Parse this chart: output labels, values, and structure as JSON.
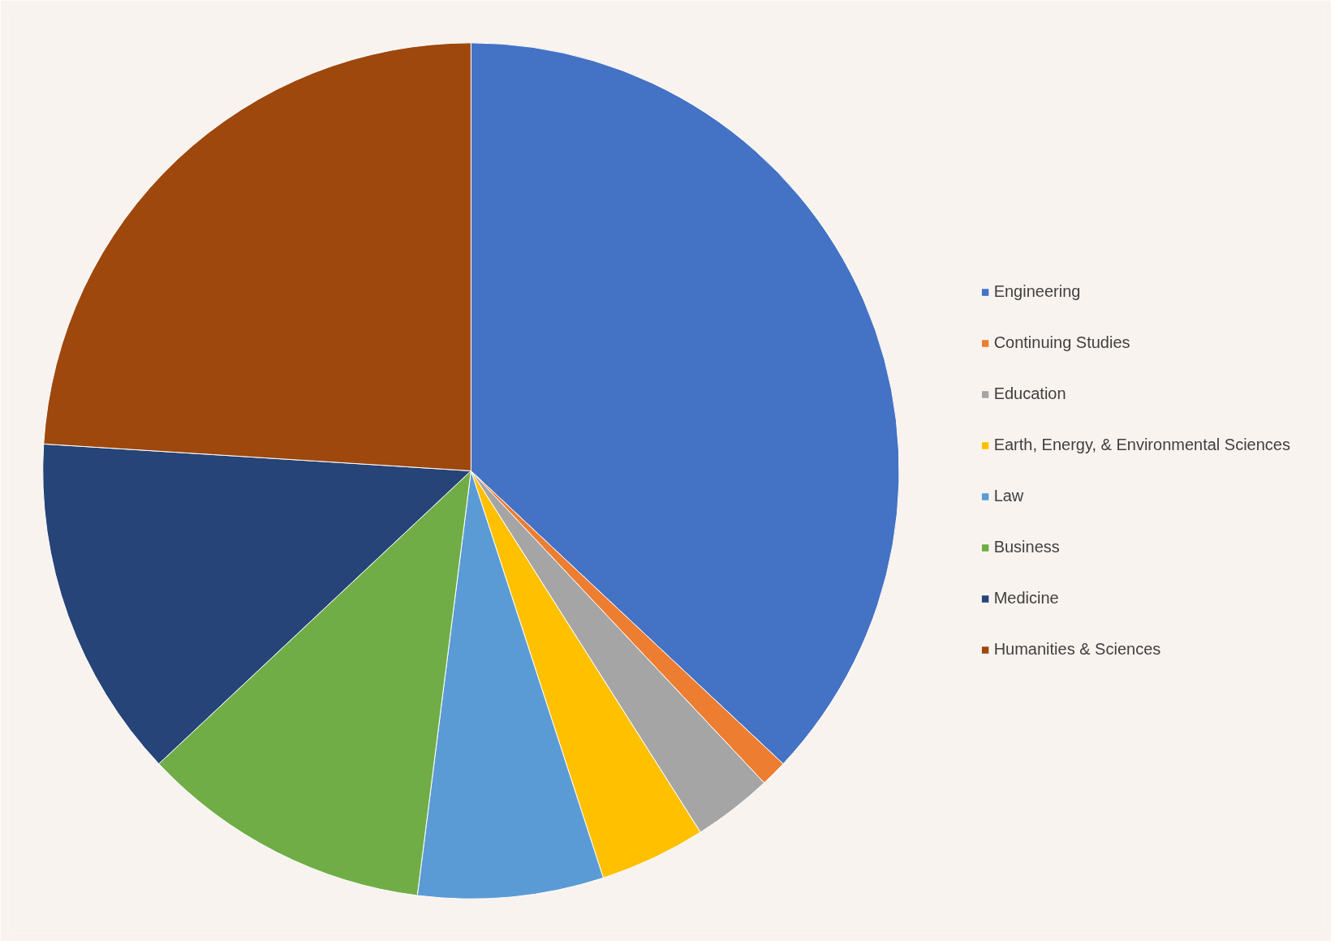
{
  "chart_data": {
    "type": "pie",
    "categories": [
      "Engineering",
      "Continuing Studies",
      "Education",
      "Earth, Energy, & Environmental Sciences",
      "Law",
      "Business",
      "Medicine",
      "Humanities & Sciences"
    ],
    "values": [
      37,
      1,
      3,
      4,
      7,
      11,
      13,
      24
    ],
    "colors": [
      "#4472c4",
      "#ed7d31",
      "#a5a5a5",
      "#ffc000",
      "#5b9bd5",
      "#70ad47",
      "#264478",
      "#9e480e"
    ],
    "legend": "right"
  }
}
